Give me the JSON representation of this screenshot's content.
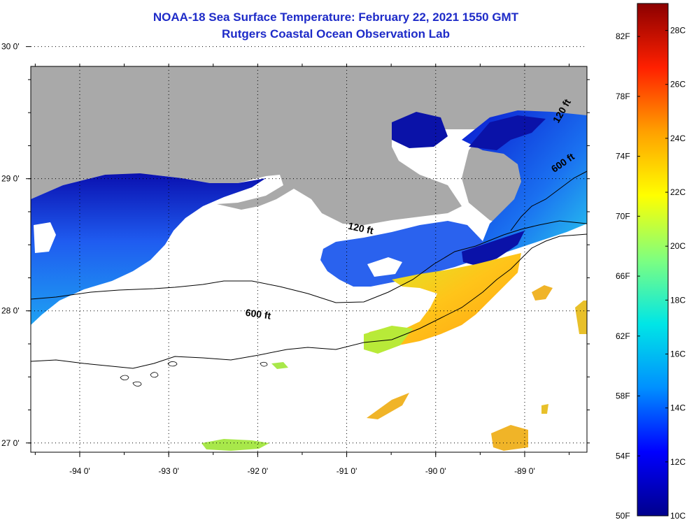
{
  "title": "NOAA-18 Sea Surface Temperature:  February 22, 2021 1550 GMT",
  "subtitle": "Rutgers Coastal Ocean Observation Lab",
  "map": {
    "lon_range": [
      -94.55,
      -88.3
    ],
    "lat_range": [
      26.93,
      29.85
    ],
    "lon_ticks": [
      {
        "value": -94,
        "label": "-94 0'"
      },
      {
        "value": -93,
        "label": "-93 0'"
      },
      {
        "value": -92,
        "label": "-92 0'"
      },
      {
        "value": -91,
        "label": "-91 0'"
      },
      {
        "value": -90,
        "label": "-90 0'"
      },
      {
        "value": -89,
        "label": "-89 0'"
      }
    ],
    "lat_ticks": [
      {
        "value": 30,
        "label": "30 0'"
      },
      {
        "value": 29,
        "label": "29 0'"
      },
      {
        "value": 28,
        "label": "28 0'"
      },
      {
        "value": 27,
        "label": "27 0'"
      }
    ],
    "contour_labels": [
      {
        "label": "120 ft",
        "lon": -90.85,
        "lat": 28.6
      },
      {
        "label": "600 ft",
        "lon": -92.0,
        "lat": 27.95
      },
      {
        "label": "120 ft",
        "lon": -88.55,
        "lat": 29.5
      },
      {
        "label": "600 ft",
        "lon": -88.55,
        "lat": 29.1
      }
    ],
    "colors": {
      "land": "#a9a9a9",
      "no_data": "#ffffff",
      "contour": "#000000"
    }
  },
  "colorbar": {
    "fahrenheit_labels": [
      "82F",
      "78F",
      "74F",
      "70F",
      "66F",
      "62F",
      "58F",
      "54F",
      "50F"
    ],
    "celsius_labels": [
      "28C",
      "26C",
      "24C",
      "22C",
      "20C",
      "18C",
      "16C",
      "14C",
      "12C",
      "10C"
    ],
    "min_c": 10,
    "max_c": 29,
    "stops": [
      "#00008c",
      "#0000ff",
      "#0090ff",
      "#00e6e6",
      "#7fff7f",
      "#ffff00",
      "#ffa000",
      "#ff2000",
      "#8b0000"
    ]
  }
}
